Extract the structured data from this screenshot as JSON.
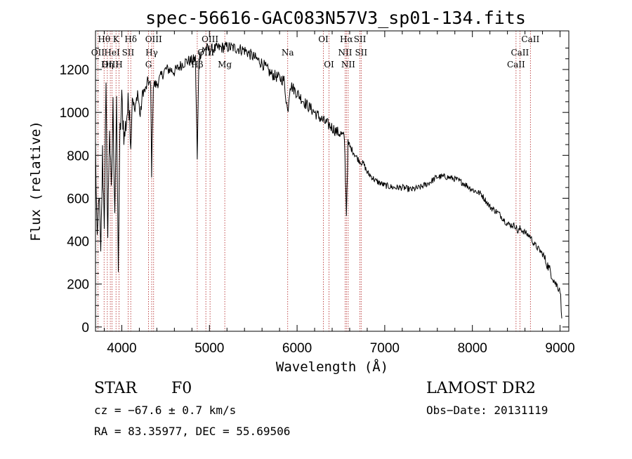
{
  "chart_data": {
    "type": "line",
    "title": "spec-56616-GAC083N57V3_sp01-134.fits",
    "xlabel": "Wavelength (Å)",
    "ylabel": "Flux (relative)",
    "xlim": [
      3700,
      9100
    ],
    "ylim": [
      -20,
      1380
    ],
    "xticks": [
      4000,
      5000,
      6000,
      7000,
      8000,
      9000
    ],
    "yticks": [
      0,
      200,
      400,
      600,
      800,
      1000,
      1200
    ],
    "grid": false,
    "series": [
      {
        "x": [
          3700,
          3720,
          3740,
          3760,
          3780,
          3800,
          3820,
          3840,
          3860,
          3880,
          3900,
          3920,
          3940,
          3960,
          3980,
          4000,
          4030,
          4060,
          4090,
          4102,
          4120,
          4150,
          4180,
          4210,
          4240,
          4270,
          4300,
          4330,
          4340,
          4360,
          4400,
          4450,
          4500,
          4550,
          4600,
          4650,
          4700,
          4750,
          4800,
          4840,
          4861,
          4880,
          4920,
          4960,
          5000,
          5100,
          5200,
          5300,
          5400,
          5500,
          5600,
          5700,
          5800,
          5850,
          5893,
          5920,
          6000,
          6100,
          6200,
          6300,
          6400,
          6450,
          6500,
          6540,
          6563,
          6580,
          6620,
          6680,
          6720,
          6760,
          6800,
          6900,
          7000,
          7100,
          7200,
          7300,
          7400,
          7500,
          7600,
          7700,
          7800,
          7900,
          8000,
          8100,
          8200,
          8300,
          8400,
          8498,
          8520,
          8542,
          8600,
          8662,
          8700,
          8800,
          8900,
          8950,
          9000,
          9020
        ],
        "y": [
          850,
          350,
          650,
          300,
          800,
          500,
          1080,
          420,
          950,
          600,
          1020,
          560,
          1000,
          300,
          900,
          1050,
          880,
          1000,
          1050,
          820,
          1080,
          1000,
          1100,
          980,
          1100,
          1100,
          1150,
          1120,
          720,
          1130,
          1130,
          1170,
          1200,
          1200,
          1190,
          1210,
          1230,
          1240,
          1240,
          1250,
          780,
          1260,
          1290,
          1300,
          1290,
          1300,
          1305,
          1300,
          1290,
          1260,
          1230,
          1180,
          1160,
          1150,
          1000,
          1130,
          1090,
          1040,
          1000,
          960,
          930,
          910,
          900,
          880,
          530,
          850,
          830,
          790,
          770,
          760,
          720,
          680,
          660,
          650,
          650,
          640,
          650,
          670,
          700,
          700,
          690,
          670,
          640,
          620,
          560,
          530,
          480,
          470,
          440,
          460,
          440,
          420,
          390,
          340,
          250,
          200,
          180,
          40
        ]
      }
    ],
    "line_markers": [
      {
        "label": "Hθ",
        "wave": 3798,
        "row": 0
      },
      {
        "label": "OII",
        "wave": 3727,
        "row": 1
      },
      {
        "label": "OIII",
        "wave": 3869,
        "row": 2
      },
      {
        "label": "K",
        "wave": 3934,
        "row": 0
      },
      {
        "label": "HeI",
        "wave": 3889,
        "row": 1
      },
      {
        "label": "Hη",
        "wave": 3835,
        "row": 2
      },
      {
        "label": "H",
        "wave": 3968,
        "row": 2
      },
      {
        "label": "Hδ",
        "wave": 4102,
        "row": 0
      },
      {
        "label": "SII",
        "wave": 4072,
        "row": 1
      },
      {
        "label": "OIII",
        "wave": 4363,
        "row": 0
      },
      {
        "label": "Hγ",
        "wave": 4341,
        "row": 1
      },
      {
        "label": "G",
        "wave": 4305,
        "row": 2
      },
      {
        "label": "Hβ",
        "wave": 4861,
        "row": 2
      },
      {
        "label": "OIII",
        "wave": 5007,
        "row": 0
      },
      {
        "label": "OIII",
        "wave": 4959,
        "row": 1
      },
      {
        "label": "Mg",
        "wave": 5175,
        "row": 2
      },
      {
        "label": "Na",
        "wave": 5893,
        "row": 1
      },
      {
        "label": "OI",
        "wave": 6300,
        "row": 0
      },
      {
        "label": "OI",
        "wave": 6364,
        "row": 2
      },
      {
        "label": "Hα",
        "wave": 6563,
        "row": 0
      },
      {
        "label": "NII",
        "wave": 6548,
        "row": 1
      },
      {
        "label": "NII",
        "wave": 6583,
        "row": 2
      },
      {
        "label": "SII",
        "wave": 6717,
        "row": 0
      },
      {
        "label": "SII",
        "wave": 6731,
        "row": 1
      },
      {
        "label": "CaII",
        "wave": 8662,
        "row": 0
      },
      {
        "label": "CaII",
        "wave": 8542,
        "row": 1
      },
      {
        "label": "CaII",
        "wave": 8498,
        "row": 2
      }
    ]
  },
  "info": {
    "class": "STAR",
    "subclass": "F0",
    "survey": "LAMOST DR2",
    "cz": "cz = −67.6 ± 0.7 km/s",
    "obs_date": "Obs−Date: 20131119",
    "coords": "RA =  83.35977, DEC =  55.69506"
  },
  "colors": {
    "spectrum": "#000000",
    "marker_lines": "#b22222",
    "axes": "#000000"
  }
}
